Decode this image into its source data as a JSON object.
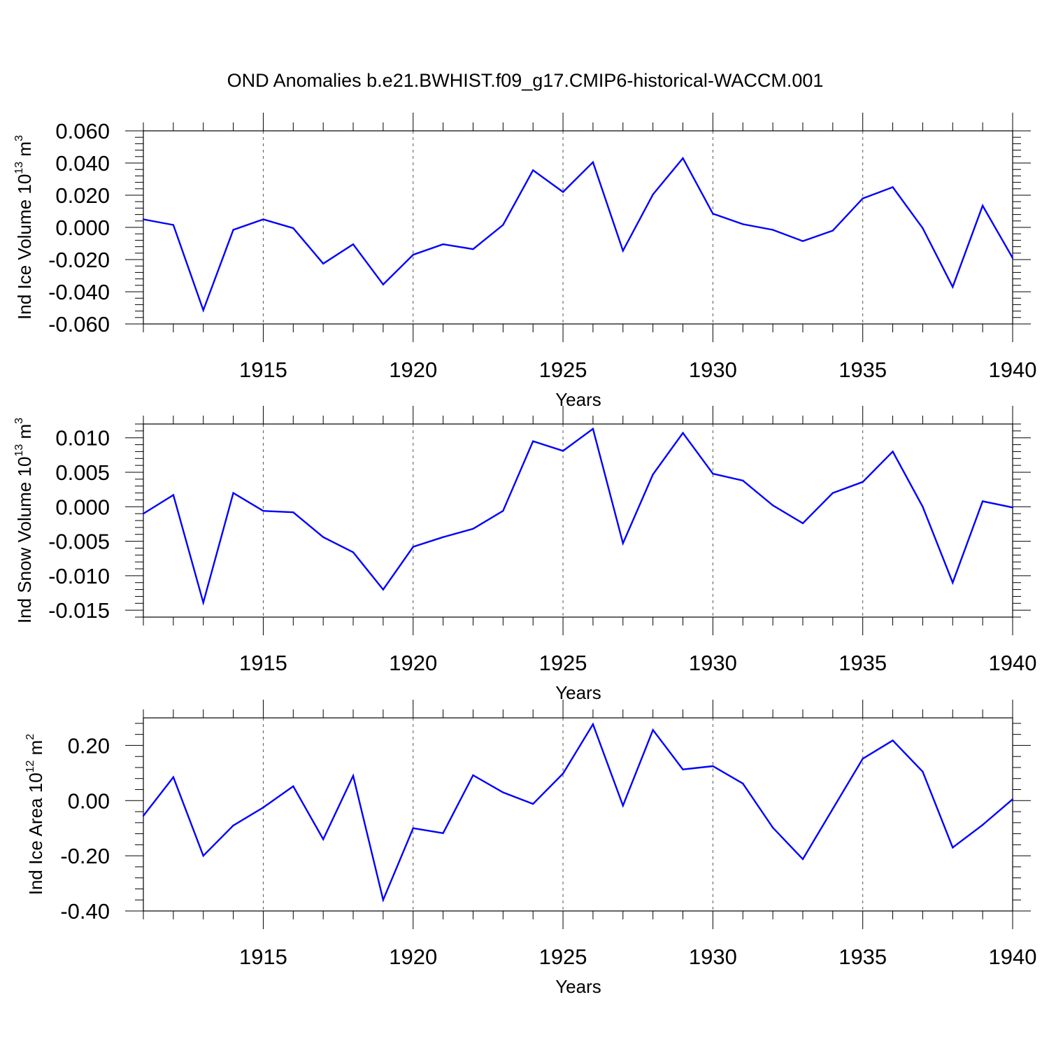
{
  "title": "OND Anomalies b.e21.BWHIST.f09_g17.CMIP6-historical-WACCM.001",
  "colors": {
    "line": "#0000ff",
    "frame": "#000000",
    "grid": "#555555"
  },
  "chart_data": [
    {
      "type": "line",
      "ylabel": {
        "main": "Ind Ice Volume 10",
        "exp": "13",
        "unit_space": " m",
        "unit_exp": "3"
      },
      "xlabel": "Years",
      "xlim": [
        1911,
        1940
      ],
      "ylim": [
        -0.06,
        0.06
      ],
      "yticks": [
        -0.06,
        -0.04,
        -0.02,
        0.0,
        0.02,
        0.04,
        0.06
      ],
      "ytick_labels": [
        "-0.060",
        "-0.040",
        "-0.020",
        "0.000",
        "0.020",
        "0.040",
        "0.060"
      ],
      "xticks": [
        1915,
        1920,
        1925,
        1930,
        1935,
        1940
      ],
      "xtick_labels": [
        "1915",
        "1920",
        "1925",
        "1930",
        "1935",
        "1940"
      ],
      "grid": "vertical-dashed",
      "x": [
        1911,
        1912,
        1913,
        1914,
        1915,
        1916,
        1917,
        1918,
        1919,
        1920,
        1921,
        1922,
        1923,
        1924,
        1925,
        1926,
        1927,
        1928,
        1929,
        1930,
        1931,
        1932,
        1933,
        1934,
        1935,
        1936,
        1937,
        1938,
        1939,
        1940
      ],
      "values": [
        0.005,
        0.0015,
        -0.0515,
        -0.0015,
        0.005,
        -0.0005,
        -0.0225,
        -0.0105,
        -0.0355,
        -0.017,
        -0.0105,
        -0.0135,
        0.0015,
        0.0355,
        0.022,
        0.0405,
        -0.0145,
        0.0205,
        0.043,
        0.0085,
        0.002,
        -0.0015,
        -0.0085,
        -0.002,
        0.018,
        0.025,
        -0.0005,
        -0.037,
        0.0135,
        -0.019
      ]
    },
    {
      "type": "line",
      "ylabel": {
        "main": "Ind Snow Volume 10",
        "exp": "13",
        "unit_space": " m",
        "unit_exp": "3"
      },
      "xlabel": "Years",
      "xlim": [
        1911,
        1940
      ],
      "ylim": [
        -0.016,
        0.012
      ],
      "yticks": [
        -0.015,
        -0.01,
        -0.005,
        0.0,
        0.005,
        0.01
      ],
      "ytick_labels": [
        "-0.015",
        "-0.010",
        "-0.005",
        "0.000",
        "0.005",
        "0.010"
      ],
      "xticks": [
        1915,
        1920,
        1925,
        1930,
        1935,
        1940
      ],
      "xtick_labels": [
        "1915",
        "1920",
        "1925",
        "1930",
        "1935",
        "1940"
      ],
      "grid": "vertical-dashed",
      "x": [
        1911,
        1912,
        1913,
        1914,
        1915,
        1916,
        1917,
        1918,
        1919,
        1920,
        1921,
        1922,
        1923,
        1924,
        1925,
        1926,
        1927,
        1928,
        1929,
        1930,
        1931,
        1932,
        1933,
        1934,
        1935,
        1936,
        1937,
        1938,
        1939,
        1940
      ],
      "values": [
        -0.001,
        0.0017,
        -0.0139,
        0.002,
        -0.0006,
        -0.0008,
        -0.0044,
        -0.0066,
        -0.012,
        -0.0058,
        -0.0044,
        -0.0032,
        -0.0006,
        0.0095,
        0.0081,
        0.0113,
        -0.0053,
        0.0047,
        0.0107,
        0.0048,
        0.0038,
        0.0002,
        -0.0024,
        0.002,
        0.0036,
        0.008,
        0.0,
        -0.011,
        0.0008,
        -0.0001
      ]
    },
    {
      "type": "line",
      "ylabel": {
        "main": "Ind Ice Area 10",
        "exp": "12",
        "unit_space": " m",
        "unit_exp": "2"
      },
      "xlabel": "Years",
      "xlim": [
        1911,
        1940
      ],
      "ylim": [
        -0.4,
        0.3
      ],
      "yticks": [
        -0.4,
        -0.2,
        0.0,
        0.2
      ],
      "ytick_labels": [
        "-0.40",
        "-0.20",
        "0.00",
        "0.20"
      ],
      "xticks": [
        1915,
        1920,
        1925,
        1930,
        1935,
        1940
      ],
      "xtick_labels": [
        "1915",
        "1920",
        "1925",
        "1930",
        "1935",
        "1940"
      ],
      "grid": "vertical-dashed",
      "x": [
        1911,
        1912,
        1913,
        1914,
        1915,
        1916,
        1917,
        1918,
        1919,
        1920,
        1921,
        1922,
        1923,
        1924,
        1925,
        1926,
        1927,
        1928,
        1929,
        1930,
        1931,
        1932,
        1933,
        1934,
        1935,
        1936,
        1937,
        1938,
        1939,
        1940
      ],
      "values": [
        -0.055,
        0.085,
        -0.2,
        -0.09,
        -0.025,
        0.052,
        -0.14,
        0.09,
        -0.36,
        -0.1,
        -0.118,
        0.092,
        0.03,
        -0.012,
        0.098,
        0.277,
        -0.018,
        0.256,
        0.113,
        0.125,
        0.062,
        -0.098,
        -0.212,
        -0.03,
        0.152,
        0.218,
        0.105,
        -0.17,
        -0.088,
        0.005
      ]
    }
  ]
}
